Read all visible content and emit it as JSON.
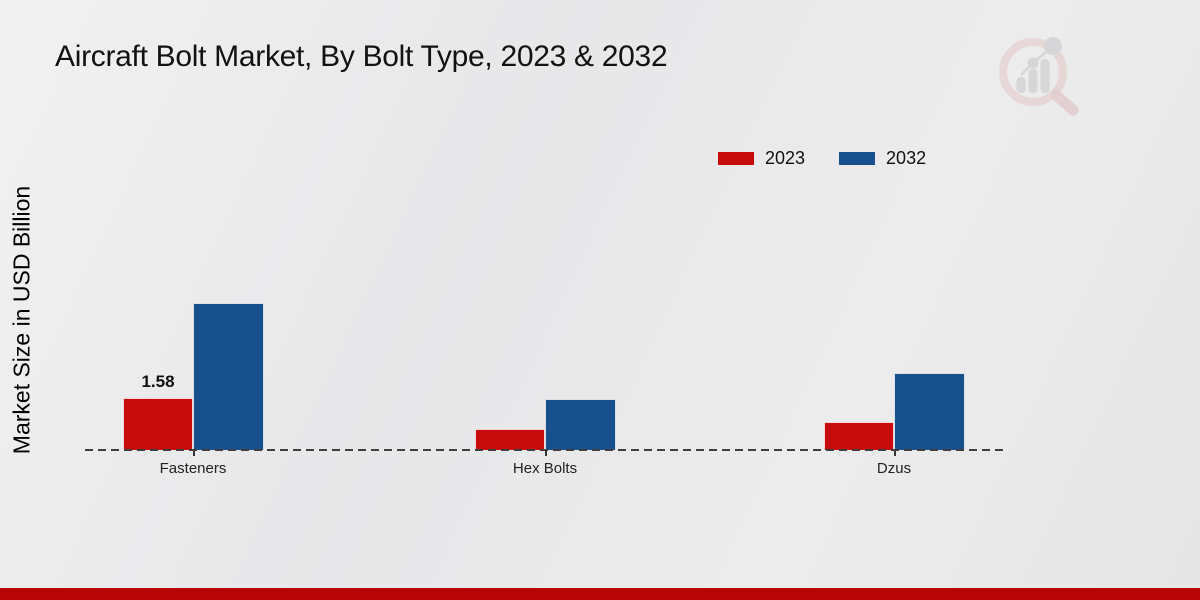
{
  "colors": {
    "series_2023": "#c60c0c",
    "series_2032": "#17508c",
    "bottom_band": "#b70505",
    "axis_dash": "#3f3f3f"
  },
  "icons": {
    "watermark": "magnifier-bar-chart-logo"
  },
  "chart_data": {
    "type": "bar",
    "title": "Aircraft Bolt Market, By Bolt Type, 2023 & 2032",
    "ylabel": "Market Size in USD Billion",
    "xlabel": "",
    "categories": [
      "Fasteners",
      "Hex Bolts",
      "Dzus"
    ],
    "series": [
      {
        "name": "2023",
        "color": "#c60c0c",
        "values": [
          1.58,
          0.63,
          0.84
        ]
      },
      {
        "name": "2032",
        "color": "#17508c",
        "values": [
          4.43,
          1.54,
          2.32
        ]
      }
    ],
    "bar_labels": [
      {
        "category": "Fasteners",
        "series": "2023",
        "text": "1.58"
      }
    ],
    "ylim": [
      0,
      4.8
    ],
    "grid": false,
    "legend_position": "top-right",
    "baseline": "dashed"
  }
}
